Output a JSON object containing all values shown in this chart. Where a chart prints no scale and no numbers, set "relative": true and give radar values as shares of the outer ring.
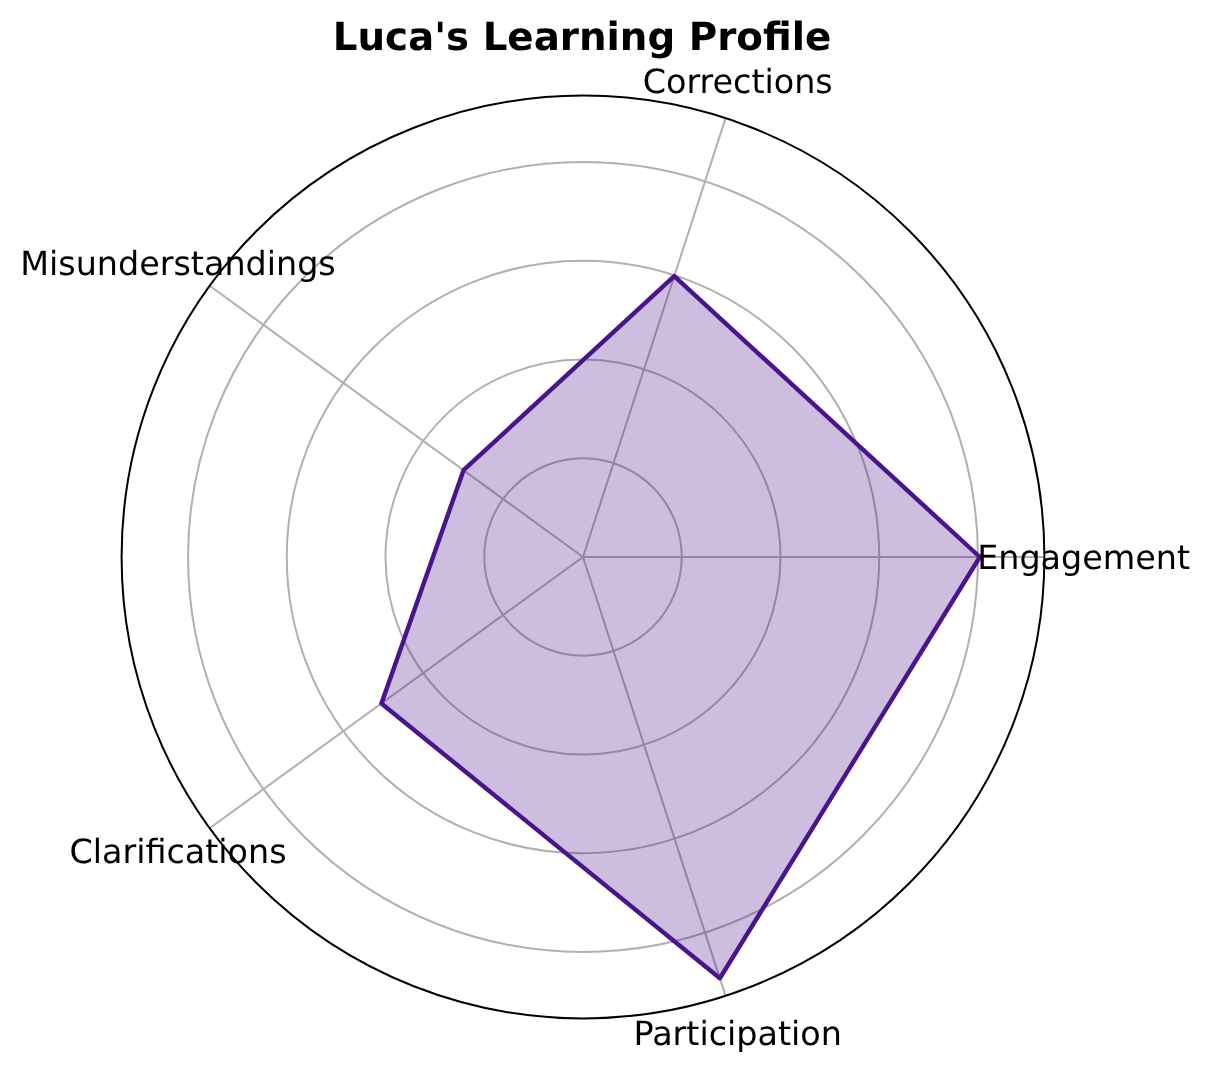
{
  "chart_data": {
    "type": "radar",
    "title": "Luca's Learning Profile",
    "categories": [
      "Corrections",
      "Engagement",
      "Participation",
      "Clarifications",
      "Misunderstandings"
    ],
    "relative": true,
    "series": [
      {
        "color": "#4a148c",
        "values": [
          0.64,
          0.86,
          0.96,
          0.54,
          0.32
        ]
      }
    ],
    "grid": true
  }
}
